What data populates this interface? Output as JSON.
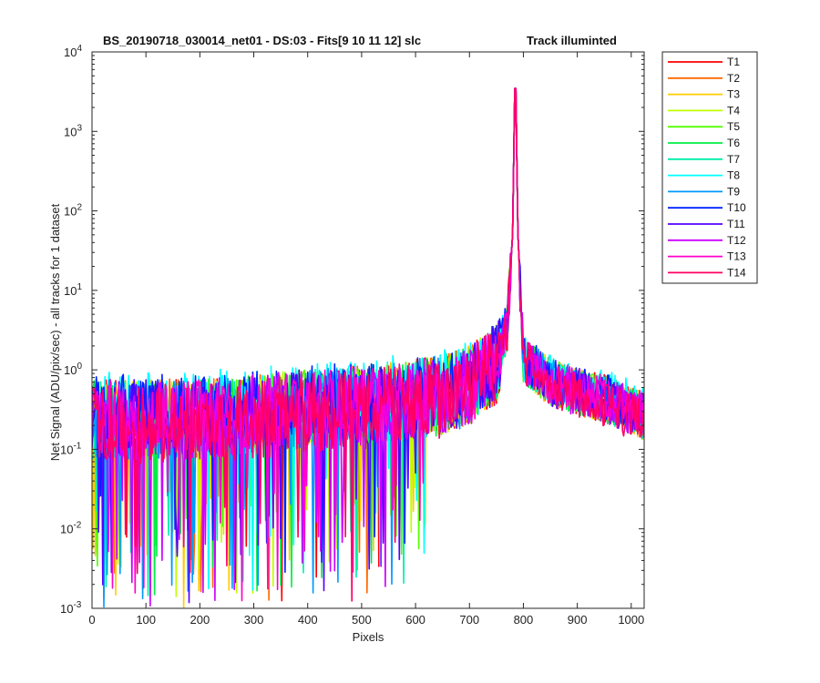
{
  "chart_data": {
    "type": "line",
    "title": "BS_20190718_030014_net01 - DS:03 - Fits[9  10  11  12]   slc",
    "subtitle": "Track illuminted",
    "xlabel": "Pixels",
    "ylabel": "Net Signal (ADU/pix/sec) - all tracks for 1 dataset",
    "xlim": [
      0,
      1024
    ],
    "ylim": [
      0.001,
      10000
    ],
    "yscale": "log",
    "grid": false,
    "legend_position": "outside-right",
    "x_ticks": [
      "0",
      "100",
      "200",
      "300",
      "400",
      "500",
      "600",
      "700",
      "800",
      "900",
      "1000"
    ],
    "x_tick_values": [
      0,
      100,
      200,
      300,
      400,
      500,
      600,
      700,
      800,
      900,
      1000
    ],
    "y_tick_values": [
      0.001,
      0.01,
      0.1,
      1,
      10,
      100,
      1000,
      10000
    ],
    "y_tick_mantissa": [
      "10",
      "10",
      "10",
      "10",
      "10",
      "10",
      "10",
      "10"
    ],
    "y_tick_exponents": [
      "-3",
      "-2",
      "-1",
      "0",
      "1",
      "2",
      "3",
      "4"
    ],
    "x": [
      0,
      100,
      200,
      300,
      400,
      500,
      600,
      650,
      700,
      750,
      770,
      780,
      785,
      790,
      800,
      850,
      900,
      950,
      1000,
      1024
    ],
    "series": [
      {
        "name": "T1",
        "color": "#ff0000",
        "values": [
          0.3,
          0.3,
          0.3,
          0.35,
          0.4,
          0.45,
          0.55,
          0.6,
          0.8,
          1.5,
          4,
          50,
          10000,
          50,
          1.5,
          0.8,
          0.6,
          0.5,
          0.35,
          0.3
        ]
      },
      {
        "name": "T2",
        "color": "#ff6a00",
        "values": [
          0.3,
          0.3,
          0.32,
          0.35,
          0.4,
          0.45,
          0.55,
          0.6,
          0.8,
          1.5,
          4,
          50,
          10000,
          50,
          1.5,
          0.8,
          0.6,
          0.5,
          0.35,
          0.3
        ]
      },
      {
        "name": "T3",
        "color": "#ffcc00",
        "values": [
          0.3,
          0.3,
          0.3,
          0.35,
          0.4,
          0.45,
          0.55,
          0.6,
          0.8,
          1.5,
          4,
          50,
          10000,
          50,
          1.5,
          0.8,
          0.6,
          0.5,
          0.35,
          0.3
        ]
      },
      {
        "name": "T4",
        "color": "#bfff00",
        "values": [
          0.3,
          0.3,
          0.3,
          0.35,
          0.4,
          0.45,
          0.55,
          0.6,
          0.8,
          1.5,
          4,
          50,
          10000,
          50,
          1.5,
          0.8,
          0.6,
          0.5,
          0.35,
          0.3
        ]
      },
      {
        "name": "T5",
        "color": "#55ff00",
        "values": [
          0.3,
          0.3,
          0.3,
          0.35,
          0.4,
          0.45,
          0.55,
          0.6,
          0.8,
          1.5,
          4,
          50,
          10000,
          50,
          1.5,
          0.8,
          0.6,
          0.5,
          0.35,
          0.3
        ]
      },
      {
        "name": "T6",
        "color": "#00ee44",
        "values": [
          0.3,
          0.3,
          0.3,
          0.35,
          0.4,
          0.45,
          0.55,
          0.6,
          0.8,
          1.5,
          4,
          50,
          10000,
          50,
          1.5,
          0.8,
          0.6,
          0.5,
          0.35,
          0.3
        ]
      },
      {
        "name": "T7",
        "color": "#00eeaa",
        "values": [
          0.3,
          0.3,
          0.3,
          0.35,
          0.4,
          0.45,
          0.55,
          0.6,
          0.8,
          1.5,
          4,
          50,
          10000,
          50,
          1.5,
          0.8,
          0.6,
          0.5,
          0.35,
          0.3
        ]
      },
      {
        "name": "T8",
        "color": "#00ffff",
        "values": [
          0.4,
          0.4,
          0.4,
          0.45,
          0.5,
          0.55,
          0.65,
          0.7,
          0.9,
          1.6,
          4,
          50,
          10000,
          50,
          1.6,
          0.9,
          0.7,
          0.6,
          0.45,
          0.4
        ]
      },
      {
        "name": "T9",
        "color": "#0099ff",
        "values": [
          0.3,
          0.3,
          0.3,
          0.35,
          0.4,
          0.45,
          0.55,
          0.6,
          0.8,
          1.5,
          4,
          50,
          10000,
          50,
          1.5,
          0.8,
          0.6,
          0.5,
          0.35,
          0.3
        ]
      },
      {
        "name": "T10",
        "color": "#0022ff",
        "values": [
          0.35,
          0.35,
          0.35,
          0.4,
          0.45,
          0.5,
          0.6,
          0.65,
          0.9,
          1.7,
          4.5,
          50,
          10000,
          50,
          1.7,
          0.9,
          0.65,
          0.55,
          0.4,
          0.35
        ]
      },
      {
        "name": "T11",
        "color": "#5500ff",
        "values": [
          0.3,
          0.3,
          0.3,
          0.35,
          0.4,
          0.45,
          0.55,
          0.6,
          0.8,
          1.5,
          4,
          50,
          10000,
          50,
          1.5,
          0.8,
          0.6,
          0.5,
          0.35,
          0.3
        ]
      },
      {
        "name": "T12",
        "color": "#cc00ff",
        "values": [
          0.3,
          0.3,
          0.3,
          0.35,
          0.4,
          0.45,
          0.55,
          0.6,
          0.8,
          1.5,
          4,
          50,
          10000,
          50,
          1.5,
          0.8,
          0.6,
          0.5,
          0.35,
          0.3
        ]
      },
      {
        "name": "T13",
        "color": "#ff00cc",
        "values": [
          0.3,
          0.3,
          0.3,
          0.35,
          0.4,
          0.45,
          0.55,
          0.6,
          0.8,
          1.5,
          4,
          50,
          10000,
          50,
          1.5,
          0.8,
          0.6,
          0.5,
          0.35,
          0.3
        ]
      },
      {
        "name": "T14",
        "color": "#ff0066",
        "values": [
          0.25,
          0.25,
          0.25,
          0.3,
          0.35,
          0.4,
          0.5,
          0.55,
          0.75,
          1.4,
          4,
          50,
          10000,
          50,
          1.4,
          0.75,
          0.55,
          0.45,
          0.3,
          0.25
        ]
      }
    ]
  }
}
